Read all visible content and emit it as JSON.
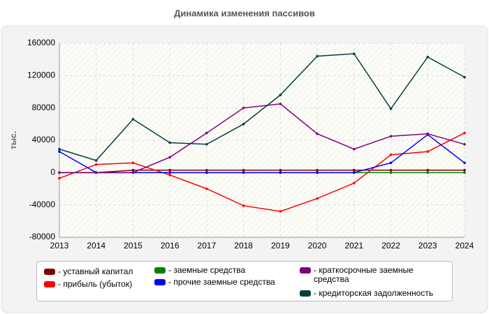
{
  "chart_data": {
    "type": "line",
    "title": "Динамика изменения пассивов",
    "y_label": "тыс.",
    "categories": [
      2013,
      2014,
      2015,
      2016,
      2017,
      2018,
      2019,
      2020,
      2021,
      2022,
      2023,
      2024
    ],
    "ylim": [
      -80000,
      160000
    ],
    "yticks": [
      -80000,
      -40000,
      0,
      40000,
      80000,
      120000,
      160000
    ],
    "grid": true,
    "series": [
      {
        "name": "- уставный капитал",
        "color": "#800000",
        "values": [
          0,
          0,
          3000,
          3000,
          3000,
          3000,
          3000,
          3000,
          3000,
          3000,
          3000,
          3000
        ]
      },
      {
        "name": "- прибыль (убыток)",
        "color": "#ff0000",
        "values": [
          -7000,
          10000,
          12000,
          -3000,
          -20000,
          -41000,
          -48000,
          -32000,
          -13000,
          22000,
          26000,
          49000
        ]
      },
      {
        "name": "- заемные средства",
        "color": "#008000",
        "values": [
          0,
          0,
          0,
          0,
          0,
          0,
          0,
          0,
          0,
          0,
          0,
          0
        ]
      },
      {
        "name": "- прочие заемные средства",
        "color": "#0000ff",
        "values": [
          26000,
          0,
          0,
          0,
          0,
          0,
          0,
          0,
          0,
          12000,
          47000,
          12000
        ]
      },
      {
        "name": "- краткосрочные заемные средства",
        "color": "#800080",
        "values": [
          0,
          0,
          0,
          19000,
          49000,
          80000,
          85000,
          48000,
          29000,
          45000,
          48000,
          35000
        ]
      },
      {
        "name": "- кредиторская задолженность",
        "color": "#004040",
        "values": [
          29000,
          15000,
          66000,
          37000,
          35000,
          60000,
          96000,
          144000,
          147000,
          79000,
          143000,
          118000
        ]
      }
    ]
  }
}
